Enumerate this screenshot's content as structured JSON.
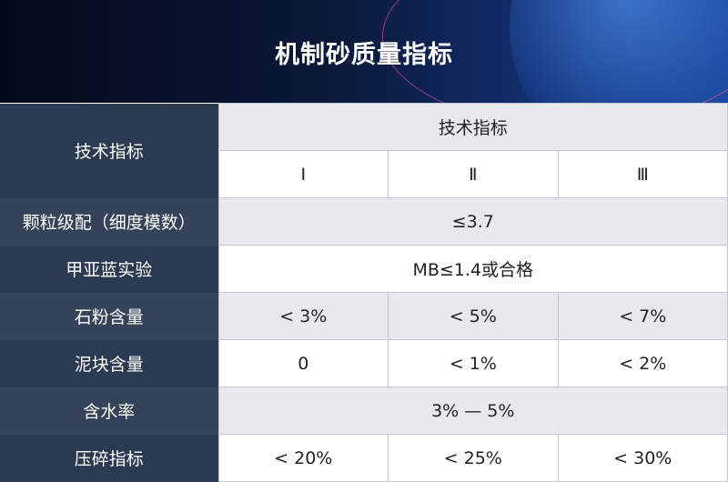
{
  "title": "机制砂质量指标",
  "table": {
    "row_header": "技术指标",
    "group_header": "技术指标",
    "grades": [
      "Ⅰ",
      "Ⅱ",
      "Ⅲ"
    ],
    "rows": [
      {
        "label": "颗粒级配（细度模数）",
        "merged": "≤3.7"
      },
      {
        "label": "甲亚蓝实验",
        "merged": "MB≤1.4或合格"
      },
      {
        "label": "石粉含量",
        "values": [
          "< 3%",
          "< 5%",
          "< 7%"
        ]
      },
      {
        "label": "泥块含量",
        "values": [
          "0",
          "< 1%",
          "< 2%"
        ]
      },
      {
        "label": "含水率",
        "merged": "3% — 5%"
      },
      {
        "label": "压碎指标",
        "values": [
          "< 20%",
          "< 25%",
          "< 30%"
        ]
      }
    ]
  }
}
